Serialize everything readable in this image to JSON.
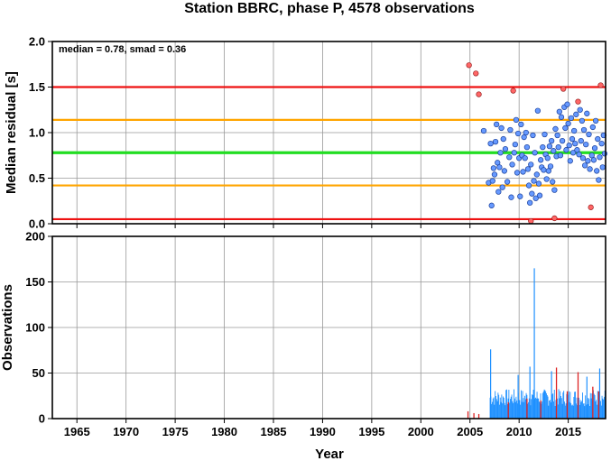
{
  "title": "Station BBRC, phase P, 4578 observations",
  "colors": {
    "red": "#ee1111",
    "orange": "#ffa500",
    "green": "#22dd22",
    "blue_point": "#6699ff",
    "red_point": "#ff6666",
    "bar_blue": "#1e90ff",
    "bar_red": "#dd2222",
    "grid": "#999999"
  },
  "chart_data": [
    {
      "type": "scatter",
      "title": "Station BBRC, phase P, 4578 observations",
      "xlabel": "",
      "ylabel": "Median residual [s]",
      "xlim": [
        1962.5,
        2018.8
      ],
      "ylim": [
        0.0,
        2.0
      ],
      "yticks": [
        "0.0",
        "0.5",
        "1.0",
        "1.5",
        "2.0"
      ],
      "grid": true,
      "annotation": "median = 0.78, smad = 0.36",
      "reference_lines": [
        {
          "name": "upper-red",
          "y": 1.5,
          "color": "red"
        },
        {
          "name": "upper-orange",
          "y": 1.14,
          "color": "orange"
        },
        {
          "name": "median",
          "y": 0.78,
          "color": "green"
        },
        {
          "name": "lower-orange",
          "y": 0.42,
          "color": "orange"
        },
        {
          "name": "lower-red",
          "y": 0.05,
          "color": "red"
        }
      ],
      "outliers": [
        [
          2004.9,
          1.74
        ],
        [
          2005.6,
          1.65
        ],
        [
          2005.9,
          1.42
        ],
        [
          2009.4,
          1.46
        ],
        [
          2011.2,
          0.03
        ],
        [
          2013.6,
          0.06
        ],
        [
          2014.5,
          1.48
        ],
        [
          2016.0,
          1.34
        ],
        [
          2017.3,
          0.18
        ],
        [
          2018.3,
          1.52
        ]
      ],
      "points": [
        [
          2006.4,
          1.02
        ],
        [
          2006.9,
          0.45
        ],
        [
          2007.1,
          0.88
        ],
        [
          2007.2,
          0.2
        ],
        [
          2007.3,
          0.47
        ],
        [
          2007.4,
          0.61
        ],
        [
          2007.5,
          0.54
        ],
        [
          2007.6,
          0.9
        ],
        [
          2007.7,
          1.09
        ],
        [
          2007.8,
          0.67
        ],
        [
          2007.9,
          0.35
        ],
        [
          2008.0,
          0.62
        ],
        [
          2008.1,
          0.78
        ],
        [
          2008.2,
          1.05
        ],
        [
          2008.3,
          0.4
        ],
        [
          2008.4,
          0.93
        ],
        [
          2008.5,
          0.58
        ],
        [
          2008.6,
          0.82
        ],
        [
          2008.8,
          0.46
        ],
        [
          2009.0,
          0.73
        ],
        [
          2009.1,
          1.03
        ],
        [
          2009.2,
          0.29
        ],
        [
          2009.3,
          0.65
        ],
        [
          2009.5,
          0.78
        ],
        [
          2009.6,
          0.87
        ],
        [
          2009.7,
          1.14
        ],
        [
          2009.8,
          0.56
        ],
        [
          2009.9,
          0.99
        ],
        [
          2010.0,
          0.72
        ],
        [
          2010.1,
          0.3
        ],
        [
          2010.2,
          1.09
        ],
        [
          2010.3,
          0.75
        ],
        [
          2010.4,
          0.57
        ],
        [
          2010.5,
          0.95
        ],
        [
          2010.6,
          0.72
        ],
        [
          2010.7,
          1.0
        ],
        [
          2010.8,
          0.84
        ],
        [
          2010.9,
          0.6
        ],
        [
          2011.0,
          0.42
        ],
        [
          2011.1,
          0.23
        ],
        [
          2011.2,
          0.65
        ],
        [
          2011.3,
          0.33
        ],
        [
          2011.4,
          0.97
        ],
        [
          2011.5,
          0.47
        ],
        [
          2011.6,
          0.78
        ],
        [
          2011.7,
          0.28
        ],
        [
          2011.8,
          0.54
        ],
        [
          2011.9,
          1.24
        ],
        [
          2012.0,
          0.44
        ],
        [
          2012.1,
          0.31
        ],
        [
          2012.2,
          0.7
        ],
        [
          2012.3,
          0.62
        ],
        [
          2012.4,
          0.84
        ],
        [
          2012.5,
          0.59
        ],
        [
          2012.6,
          0.98
        ],
        [
          2012.7,
          0.76
        ],
        [
          2012.8,
          0.49
        ],
        [
          2012.9,
          0.72
        ],
        [
          2013.0,
          0.58
        ],
        [
          2013.1,
          0.85
        ],
        [
          2013.2,
          0.63
        ],
        [
          2013.3,
          0.91
        ],
        [
          2013.4,
          0.46
        ],
        [
          2013.5,
          0.8
        ],
        [
          2013.6,
          0.37
        ],
        [
          2013.7,
          1.04
        ],
        [
          2013.8,
          0.74
        ],
        [
          2013.9,
          0.97
        ],
        [
          2014.0,
          0.84
        ],
        [
          2014.1,
          1.23
        ],
        [
          2014.2,
          0.75
        ],
        [
          2014.3,
          1.17
        ],
        [
          2014.4,
          0.91
        ],
        [
          2014.6,
          1.28
        ],
        [
          2014.7,
          1.05
        ],
        [
          2014.8,
          0.81
        ],
        [
          2014.9,
          1.31
        ],
        [
          2015.0,
          1.1
        ],
        [
          2015.1,
          0.86
        ],
        [
          2015.2,
          0.69
        ],
        [
          2015.3,
          1.16
        ],
        [
          2015.4,
          0.93
        ],
        [
          2015.5,
          0.78
        ],
        [
          2015.6,
          1.02
        ],
        [
          2015.7,
          0.88
        ],
        [
          2015.8,
          1.2
        ],
        [
          2015.9,
          0.81
        ],
        [
          2016.1,
          0.76
        ],
        [
          2016.2,
          1.25
        ],
        [
          2016.3,
          0.91
        ],
        [
          2016.4,
          1.13
        ],
        [
          2016.5,
          0.72
        ],
        [
          2016.6,
          1.03
        ],
        [
          2016.7,
          0.64
        ],
        [
          2016.8,
          0.87
        ],
        [
          2016.9,
          1.21
        ],
        [
          2017.0,
          0.69
        ],
        [
          2017.1,
          0.98
        ],
        [
          2017.2,
          0.6
        ],
        [
          2017.4,
          0.75
        ],
        [
          2017.5,
          1.06
        ],
        [
          2017.6,
          0.7
        ],
        [
          2017.7,
          0.83
        ],
        [
          2017.8,
          1.13
        ],
        [
          2017.9,
          0.58
        ],
        [
          2018.0,
          0.93
        ],
        [
          2018.1,
          0.48
        ],
        [
          2018.2,
          0.73
        ],
        [
          2018.4,
          0.88
        ],
        [
          2018.5,
          0.62
        ],
        [
          2018.6,
          0.97
        ],
        [
          2018.7,
          0.77
        ]
      ]
    },
    {
      "type": "bar",
      "xlabel": "Year",
      "ylabel": "Observations",
      "xlim": [
        1962.5,
        2018.8
      ],
      "ylim": [
        0,
        200
      ],
      "yticks": [
        "0",
        "50",
        "100",
        "150",
        "200"
      ],
      "xticks": [
        "1965",
        "1970",
        "1975",
        "1980",
        "1985",
        "1990",
        "1995",
        "2000",
        "2005",
        "2010",
        "2015"
      ],
      "grid": true,
      "spikes": [
        {
          "x": 2007.1,
          "value": 76
        },
        {
          "x": 2009.9,
          "value": 48
        },
        {
          "x": 2011.55,
          "value": 165
        },
        {
          "x": 2011.1,
          "value": 57
        },
        {
          "x": 2013.3,
          "value": 52
        },
        {
          "x": 2016.9,
          "value": 46
        },
        {
          "x": 2018.2,
          "value": 55
        }
      ],
      "red_bars": [
        {
          "x": 2004.8,
          "value": 8
        },
        {
          "x": 2005.4,
          "value": 6
        },
        {
          "x": 2005.9,
          "value": 5
        },
        {
          "x": 2008.9,
          "value": 18
        },
        {
          "x": 2010.8,
          "value": 22
        },
        {
          "x": 2012.2,
          "value": 20
        },
        {
          "x": 2013.8,
          "value": 56
        },
        {
          "x": 2014.9,
          "value": 30
        },
        {
          "x": 2016.0,
          "value": 51
        },
        {
          "x": 2017.5,
          "value": 35
        },
        {
          "x": 2018.1,
          "value": 30
        }
      ],
      "dense_range": {
        "start": 2007.05,
        "end": 2018.8,
        "baseline": 25
      }
    }
  ]
}
